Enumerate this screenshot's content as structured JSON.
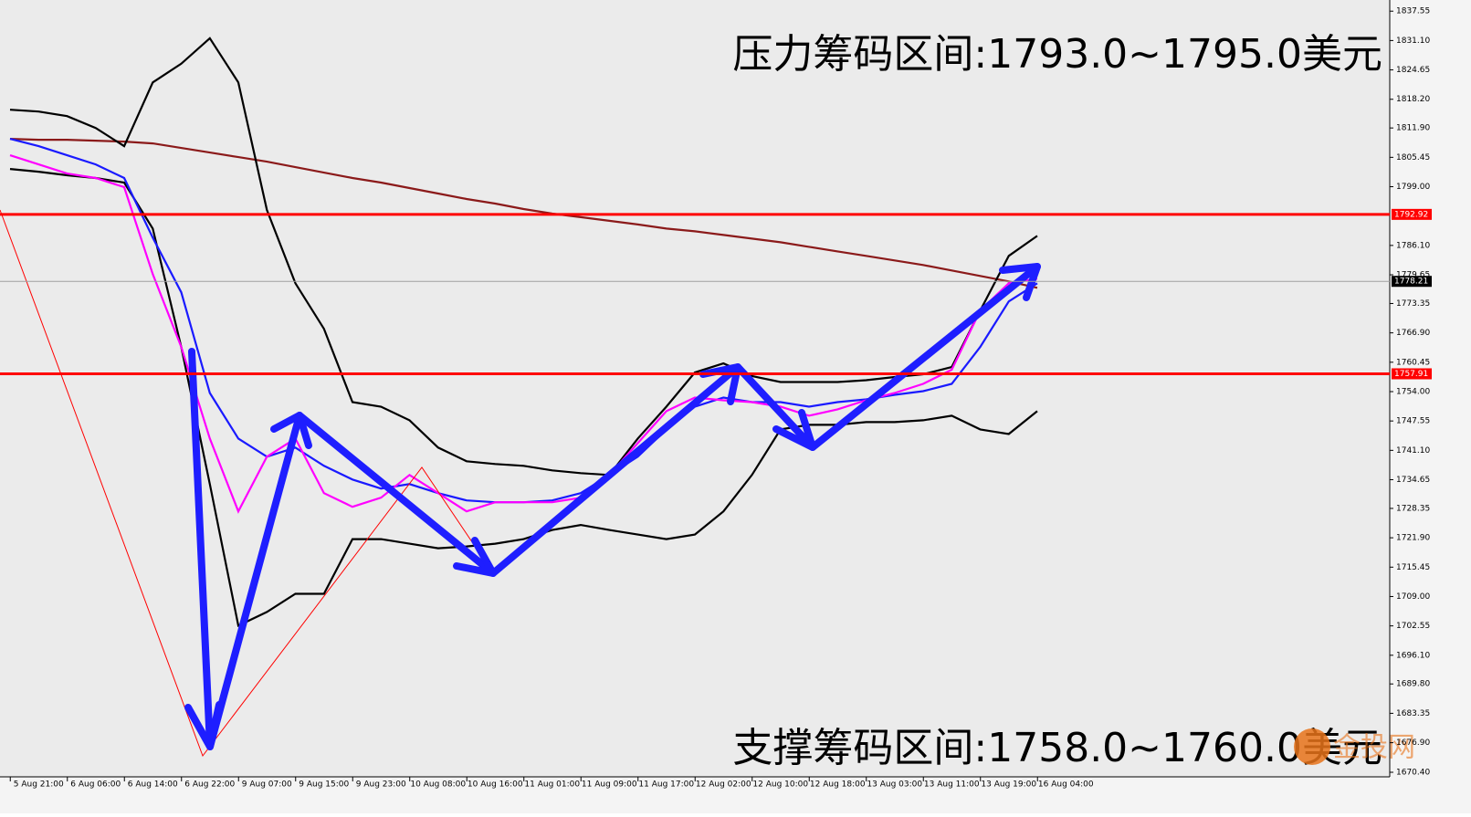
{
  "chart_data": {
    "type": "line",
    "annotations": [
      "压力筹码区间:1793.0~1795.0美元",
      "支撑筹码区间:1758.0~1760.0美元"
    ],
    "watermark": "金投网",
    "categories": [
      null,
      "5 Aug 21:00",
      null,
      "6 Aug 06:00",
      null,
      "6 Aug 14:00",
      null,
      "6 Aug 22:00",
      null,
      "9 Aug 07:00",
      null,
      "9 Aug 15:00",
      null,
      "9 Aug 23:00",
      null,
      "10 Aug 08:00",
      null,
      "10 Aug 16:00",
      null,
      "11 Aug 01:00",
      null,
      "11 Aug 09:00",
      null,
      "11 Aug 17:00",
      null,
      "12 Aug 02:00",
      null,
      "12 Aug 10:00",
      null,
      "12 Aug 18:00",
      null,
      "13 Aug 03:00",
      null,
      "13 Aug 11:00",
      null,
      "13 Aug 19:00",
      null,
      "16 Aug 04:00"
    ],
    "series": [
      {
        "color": "#8b1a1a",
        "values": [
          1809.5,
          1809.3,
          1809.3,
          1809.1,
          1808.9,
          1808.5,
          1807.5,
          1806.5,
          1805.5,
          1804.5,
          1803.3,
          1802.1,
          1800.9,
          1799.9,
          1798.7,
          1797.5,
          1796.3,
          1795.3,
          1794.1,
          1793.1,
          1792.3,
          1791.5,
          1790.7,
          1789.8,
          1789.2,
          1788.4,
          1787.6,
          1786.8,
          1785.8,
          1784.8,
          1783.8,
          1782.8,
          1781.8,
          1780.6,
          1779.4,
          1778.2,
          1776.8,
          null
        ]
      },
      {
        "color": "#000000",
        "values": [
          1815.9,
          1815.5,
          1814.5,
          1811.9,
          1807.9,
          1821.9,
          1826.0,
          1831.6,
          1821.9,
          1793.9,
          1777.8,
          1767.8,
          1751.7,
          1750.7,
          1747.7,
          1741.7,
          1738.7,
          1738.1,
          1737.7,
          1736.7,
          1736.1,
          1735.7,
          1743.7,
          1750.7,
          1758.2,
          1760.2,
          1757.4,
          1756.1,
          1756.1,
          1756.1,
          1756.5,
          1757.2,
          1757.8,
          1759.4,
          1771.8,
          1783.8,
          1788.2,
          null
        ]
      },
      {
        "color": "#000000",
        "values": [
          1802.9,
          1802.3,
          1801.5,
          1800.9,
          1799.9,
          1789.8,
          1763.8,
          1733.7,
          1702.6,
          1705.6,
          1709.6,
          1709.6,
          1721.6,
          1721.6,
          1720.6,
          1719.6,
          1720.0,
          1720.6,
          1721.6,
          1723.6,
          1724.7,
          1723.6,
          1722.6,
          1721.6,
          1722.6,
          1727.7,
          1735.7,
          1745.7,
          1746.7,
          1746.7,
          1747.3,
          1747.3,
          1747.7,
          1748.7,
          1745.7,
          1744.7,
          1749.7,
          null
        ]
      },
      {
        "color": "#1a1aff",
        "values": [
          1809.5,
          1807.9,
          1805.9,
          1803.9,
          1800.9,
          1787.8,
          1775.8,
          1753.7,
          1743.7,
          1739.7,
          1741.7,
          1737.7,
          1734.7,
          1732.7,
          1733.7,
          1731.7,
          1730.1,
          1729.7,
          1729.7,
          1730.1,
          1731.7,
          1735.7,
          1739.7,
          1745.7,
          1750.7,
          1752.7,
          1751.7,
          1751.7,
          1750.7,
          1751.7,
          1752.3,
          1753.3,
          1754.1,
          1755.7,
          1763.8,
          1773.8,
          1777.8,
          null
        ]
      },
      {
        "color": "#ff00ff",
        "values": [
          1805.9,
          1803.9,
          1801.9,
          1800.9,
          1798.9,
          1779.8,
          1763.8,
          1743.7,
          1727.7,
          1739.7,
          1743.7,
          1731.7,
          1728.7,
          1730.7,
          1735.7,
          1731.7,
          1727.7,
          1729.7,
          1729.7,
          1729.7,
          1730.7,
          1735.7,
          1742.7,
          1749.7,
          1752.7,
          1752.1,
          1751.7,
          1750.7,
          1748.7,
          1750.1,
          1752.1,
          1753.7,
          1755.7,
          1758.8,
          1771.8,
          1777.8,
          1778.8,
          null
        ]
      }
    ],
    "hlines": [
      {
        "value": 1792.92,
        "color": "#ff0000"
      },
      {
        "value": 1757.91,
        "color": "#ff0000"
      },
      {
        "value": 1778.21,
        "color": "#a0a0a0"
      }
    ],
    "ylim": [
      1669.4,
      1840.0
    ],
    "yticks": [
      1837.55,
      {
        "value": 1831.1,
        "label": "1831.10"
      },
      1824.65,
      {
        "value": 1818.2,
        "label": "1818.20"
      },
      {
        "value": 1811.9,
        "label": "1811.90"
      },
      1805.45,
      {
        "value": 1799,
        "label": "1799.00"
      },
      {
        "value": 1786.1,
        "label": "1786.10"
      },
      1779.65,
      1773.35,
      {
        "value": 1766.9,
        "label": "1766.90"
      },
      1760.45,
      {
        "value": 1754,
        "label": "1754.00"
      },
      1747.55,
      {
        "value": 1741.1,
        "label": "1741.10"
      },
      1734.65,
      1728.35,
      {
        "value": 1721.9,
        "label": "1721.90"
      },
      1715.45,
      {
        "value": 1709,
        "label": "1709.00"
      },
      1702.55,
      {
        "value": 1696.1,
        "label": "1696.10"
      },
      {
        "value": 1689.8,
        "label": "1689.80"
      },
      1683.35,
      {
        "value": 1676.9,
        "label": "1676.90"
      },
      {
        "value": 1670.4,
        "label": "1670.40"
      }
    ]
  }
}
